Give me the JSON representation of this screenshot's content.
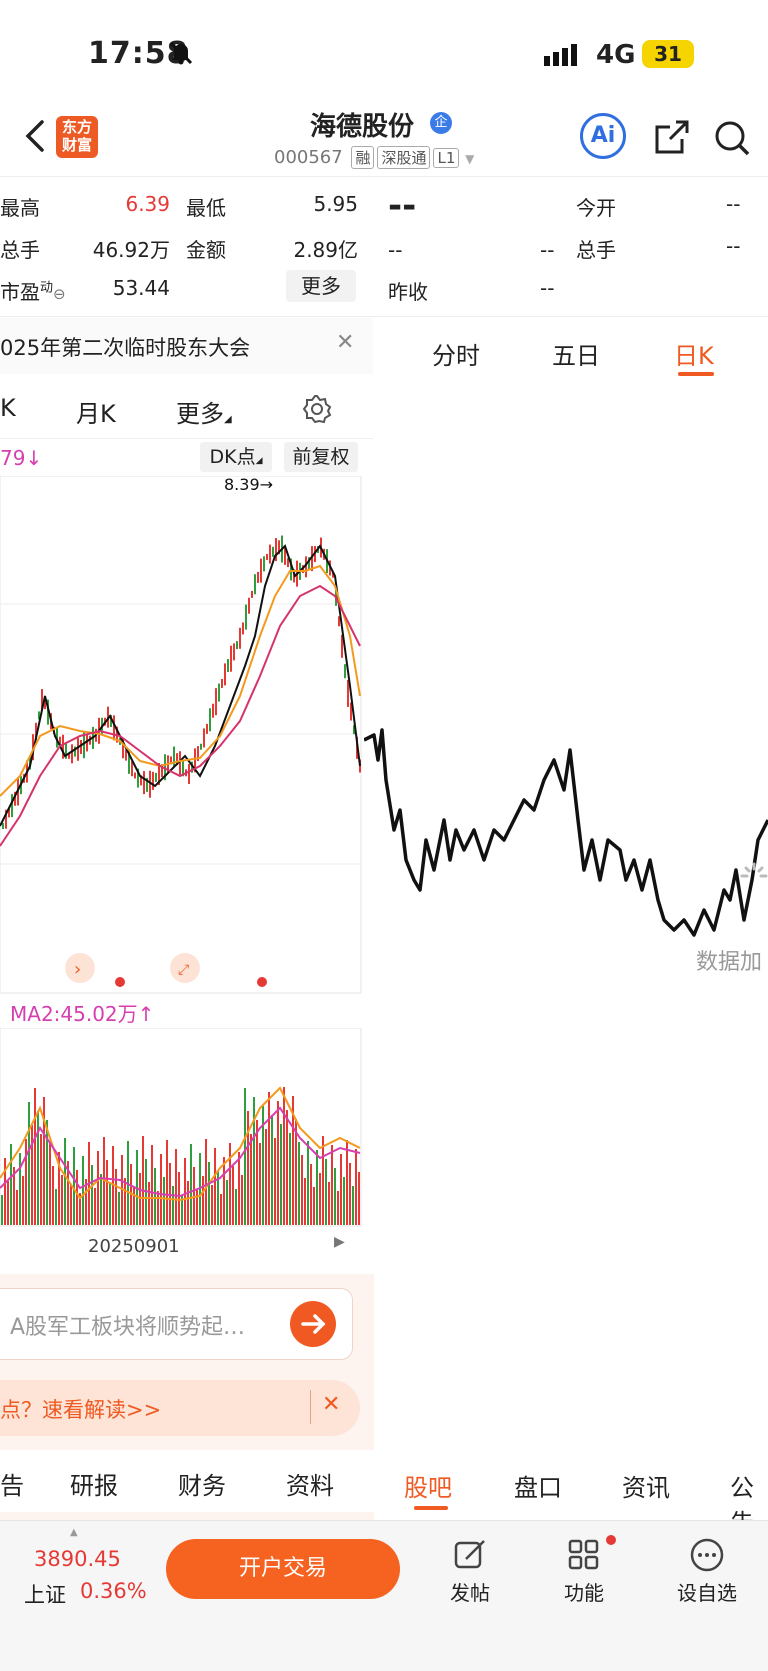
{
  "status": {
    "time": "17:58",
    "network": "4G",
    "battery": "31"
  },
  "header": {
    "logo_line1": "东方",
    "logo_line2": "财富",
    "stock_name": "海德股份",
    "stock_code": "000567",
    "tags": [
      "融",
      "深股通",
      "L1"
    ],
    "ai_label": "Ai"
  },
  "quote_left": {
    "r1": {
      "l1": "最高",
      "v1": "6.39",
      "l2": "最低",
      "v2": "5.95"
    },
    "r2": {
      "l1": "总手",
      "v1": "46.92万",
      "l2": "金额",
      "v2": "2.89亿"
    },
    "r3": {
      "l1": "市盈",
      "sup": "动",
      "v1": "53.44",
      "more": "更多"
    }
  },
  "quote_right": {
    "price": "--",
    "r1_label": "今开",
    "r1_val": "--",
    "r2_left": "--",
    "r2_mid": "--",
    "r2_label": "总手",
    "r2_val": "--",
    "r3_label": "昨收",
    "r3_val": "--"
  },
  "notice": {
    "text": "025年第二次临时股东大会"
  },
  "left_tabs": {
    "t1": "K",
    "t2": "月K",
    "t3": "更多"
  },
  "right_tabs": {
    "t1": "分时",
    "t2": "五日",
    "t3": "日K"
  },
  "kchart": {
    "ma_text": "79↓",
    "dk_btn": "DK点",
    "fq_btn": "前复权",
    "max_label": "8.39→"
  },
  "volume": {
    "ma2": "MA2:45.02万↑",
    "date_label": "20250901"
  },
  "loading_text": "数据加",
  "search": {
    "placeholder": "A股军工板块将顺势起…"
  },
  "banner": {
    "text": "点？速看解读>>"
  },
  "left_bottom_tabs": [
    "告",
    "研报",
    "财务",
    "资料"
  ],
  "right_bottom_tabs": [
    "股吧",
    "盘口",
    "资讯",
    "公告"
  ],
  "bottom_nav": {
    "index_value": "3890.45",
    "index_name": "上证",
    "index_change": "0.36%",
    "trade_btn": "开户交易",
    "post": "发帖",
    "func": "功能",
    "watch": "设自选"
  }
}
